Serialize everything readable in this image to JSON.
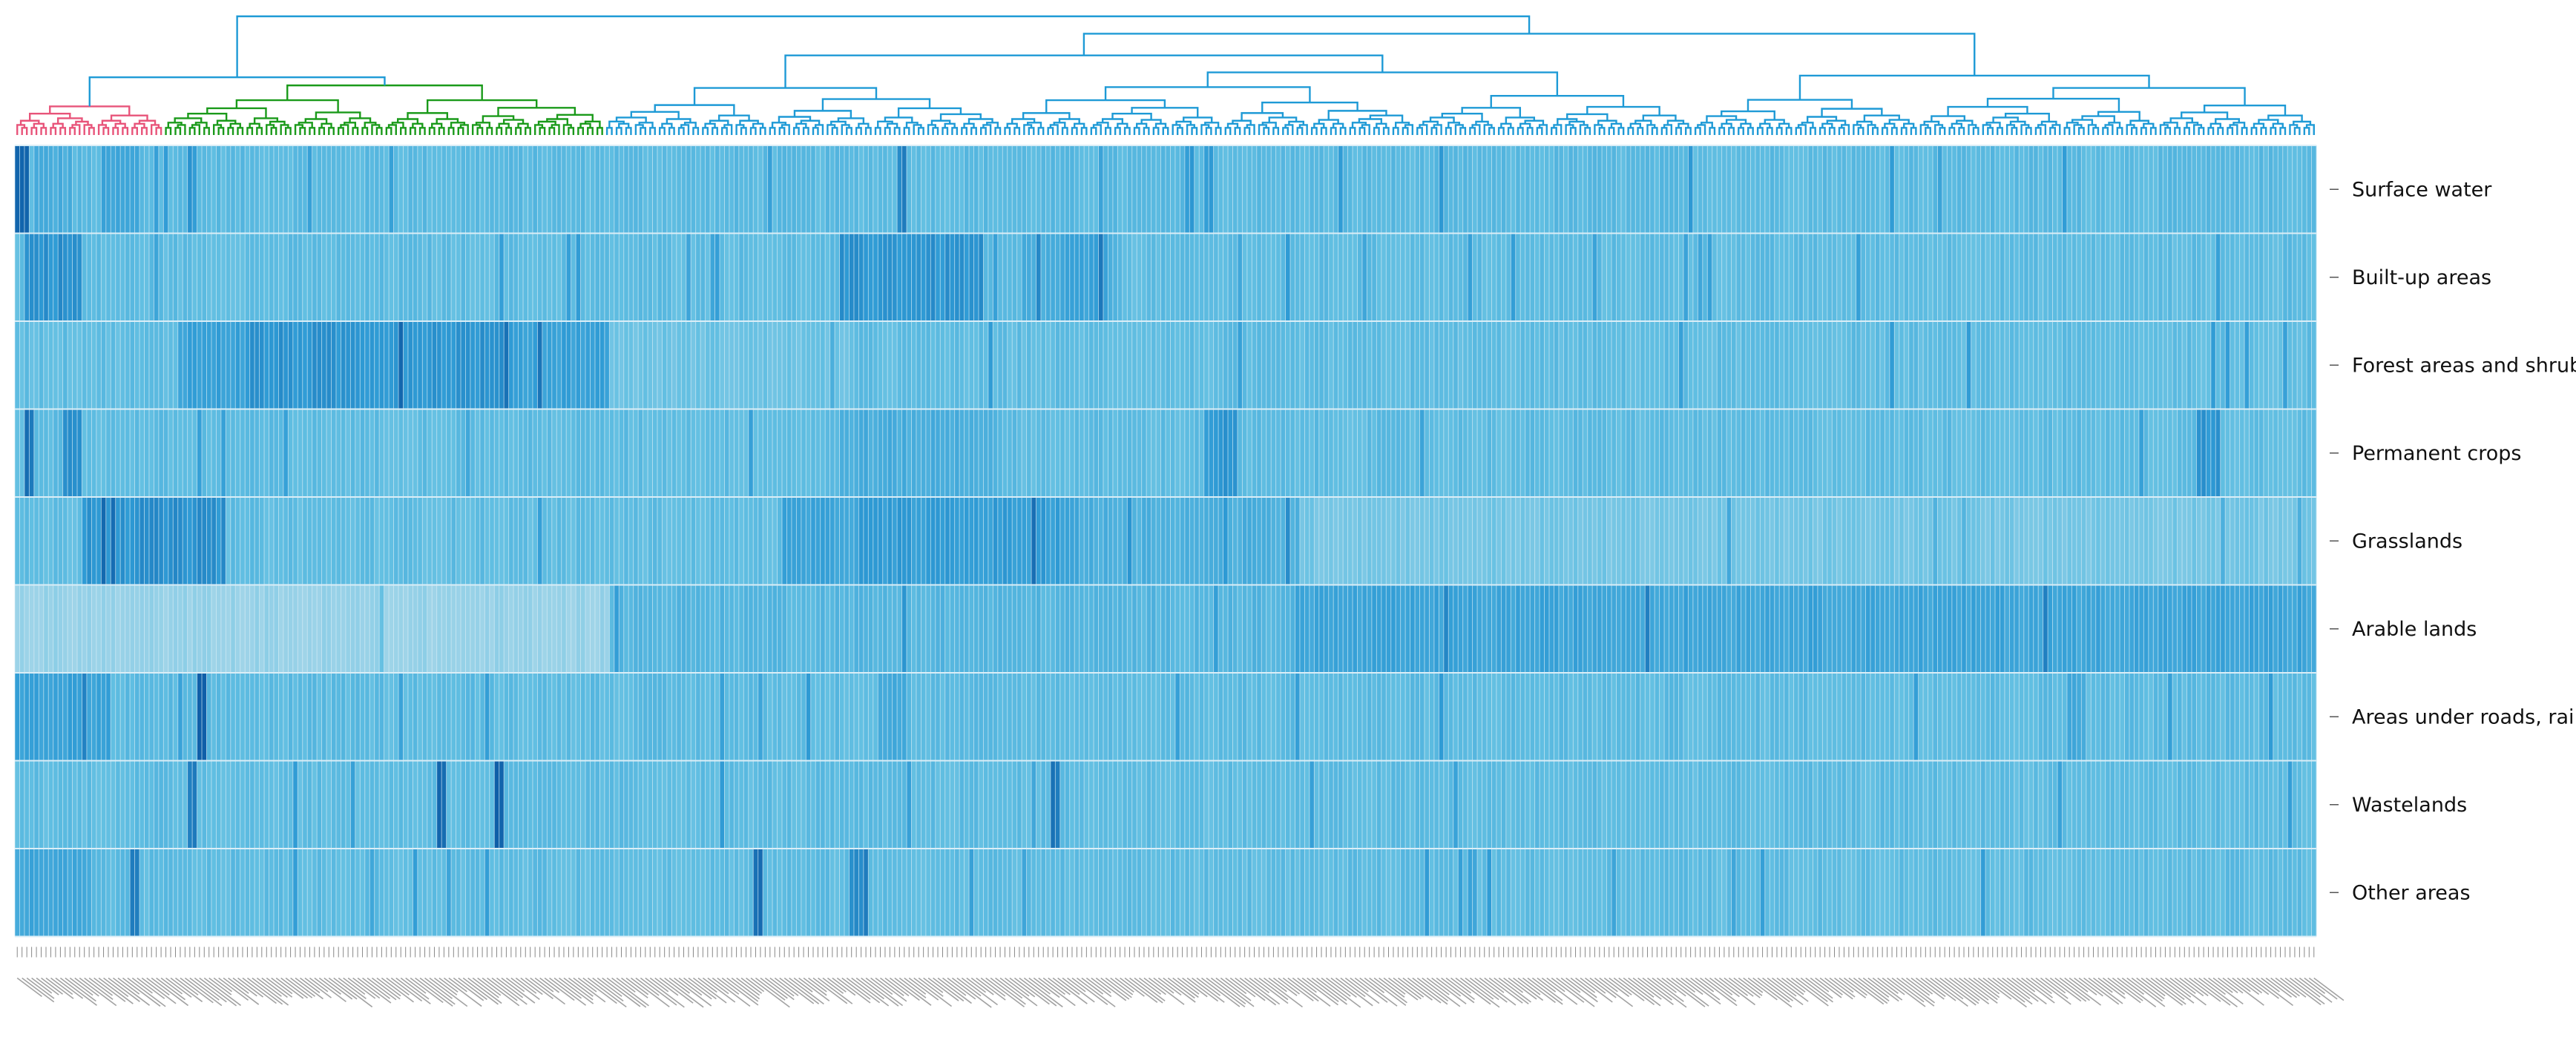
{
  "chart_data": {
    "type": "heatmap",
    "title": "",
    "xlabel": "",
    "ylabel": "",
    "rows": [
      "Surface water",
      "Built-up areas",
      "Forest areas and shrub",
      "Permanent crops",
      "Grasslands",
      "Arable lands",
      "Areas under roads, rai",
      "Wastelands",
      "Other areas"
    ],
    "n_columns": 480,
    "value_range": [
      0,
      1
    ],
    "colorscale": [
      "#9fd4e8",
      "#62bfe2",
      "#2f9bd5",
      "#0f5fa8"
    ],
    "grid_color": "#dbeef7",
    "dendrogram": {
      "orientation": "top",
      "clusters": [
        {
          "color": "#e8547a",
          "columns": [
            0,
            30
          ]
        },
        {
          "color": "#1a9a1a",
          "columns": [
            31,
            122
          ]
        },
        {
          "color": "#1e9ad6",
          "columns": [
            123,
            479
          ]
        }
      ],
      "link_color_above": "#1e9ad6"
    },
    "row_profiles": [
      {
        "base": 0.38,
        "bands": [
          [
            0,
            3,
            0.95
          ],
          [
            4,
            12,
            0.5
          ],
          [
            18,
            26,
            0.55
          ],
          [
            36,
            38,
            0.7
          ],
          [
            184,
            186,
            0.8
          ],
          [
            244,
            246,
            0.7
          ]
        ]
      },
      {
        "base": 0.36,
        "bands": [
          [
            2,
            14,
            0.72
          ],
          [
            172,
            202,
            0.7
          ],
          [
            210,
            230,
            0.5
          ],
          [
            218,
            228,
            0.58
          ]
        ]
      },
      {
        "base": 0.35,
        "bands": [
          [
            34,
            124,
            0.62
          ],
          [
            48,
            104,
            0.7
          ],
          [
            124,
            175,
            0.28
          ]
        ]
      },
      {
        "base": 0.36,
        "bands": [
          [
            2,
            4,
            0.9
          ],
          [
            10,
            14,
            0.75
          ],
          [
            172,
            205,
            0.5
          ],
          [
            248,
            255,
            0.68
          ],
          [
            455,
            460,
            0.7
          ]
        ]
      },
      {
        "base": 0.35,
        "bands": [
          [
            14,
            44,
            0.72
          ],
          [
            160,
            222,
            0.58
          ],
          [
            176,
            220,
            0.64
          ],
          [
            222,
            268,
            0.48
          ],
          [
            268,
            480,
            0.24
          ]
        ]
      },
      {
        "base": 0.42,
        "bands": [
          [
            0,
            124,
            0.04
          ],
          [
            124,
            268,
            0.42
          ],
          [
            268,
            480,
            0.58
          ]
        ]
      },
      {
        "base": 0.37,
        "bands": [
          [
            0,
            20,
            0.6
          ],
          [
            38,
            40,
            0.97
          ],
          [
            180,
            186,
            0.55
          ],
          [
            428,
            432,
            0.55
          ]
        ]
      },
      {
        "base": 0.36,
        "bands": [
          [
            36,
            38,
            0.85
          ],
          [
            88,
            90,
            0.98
          ],
          [
            100,
            102,
            0.98
          ],
          [
            216,
            218,
            0.85
          ]
        ]
      },
      {
        "base": 0.36,
        "bands": [
          [
            0,
            16,
            0.55
          ],
          [
            24,
            26,
            0.85
          ],
          [
            154,
            156,
            0.92
          ],
          [
            174,
            178,
            0.78
          ]
        ]
      }
    ]
  }
}
